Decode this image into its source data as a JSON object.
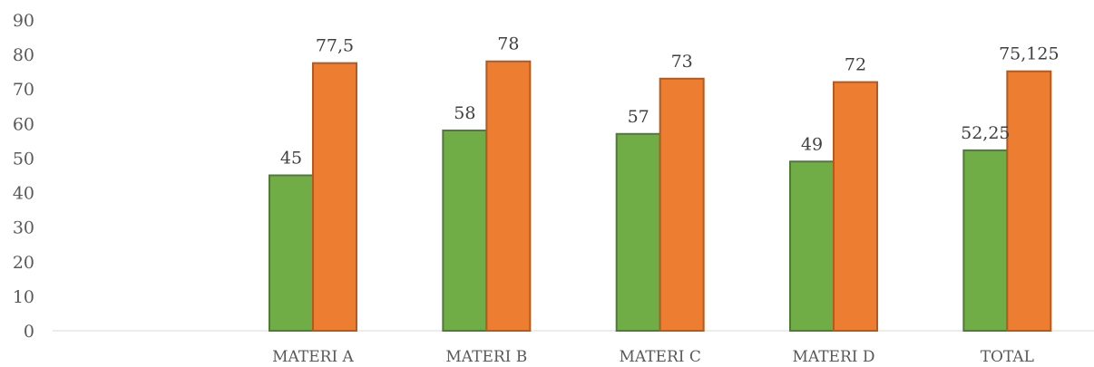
{
  "chart_data": {
    "type": "bar",
    "categories": [
      "",
      "MATERI A",
      "MATERI B",
      "MATERI C",
      "MATERI D",
      "TOTAL"
    ],
    "series": [
      {
        "values": [
          null,
          45,
          58,
          57,
          49,
          52.25
        ],
        "labels": [
          "",
          "45",
          "58",
          "57",
          "49",
          "52,25"
        ],
        "color": "#70ad47",
        "border": "#4e7c31"
      },
      {
        "values": [
          null,
          77.5,
          78,
          73,
          72,
          75.125
        ],
        "labels": [
          "",
          "77,5",
          "78",
          "73",
          "72",
          "75,125"
        ],
        "color": "#ed7d31",
        "border": "#b55a1c"
      }
    ],
    "y_ticks": [
      "0",
      "10",
      "20",
      "30",
      "40",
      "50",
      "60",
      "70",
      "80",
      "90"
    ],
    "ylim": [
      0,
      90
    ],
    "grid": false,
    "legend": "none"
  }
}
